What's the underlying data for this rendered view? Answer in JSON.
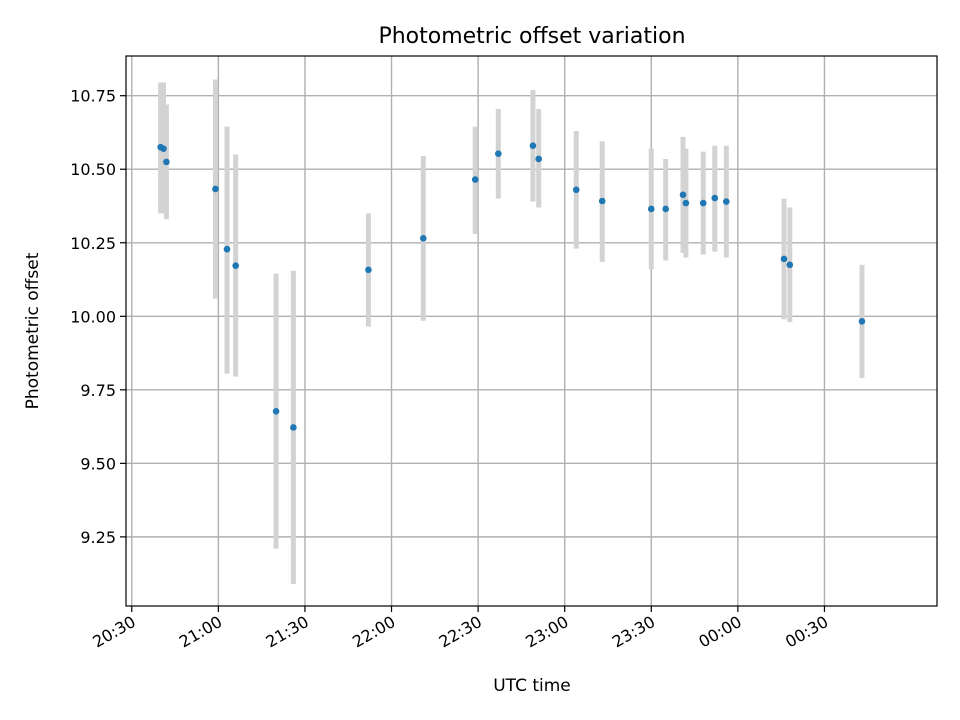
{
  "chart_data": {
    "type": "scatter",
    "title": "Photometric offset variation",
    "xlabel": "UTC time",
    "ylabel": "Photometric offset",
    "x_ticks": [
      "20:30",
      "21:00",
      "21:30",
      "22:00",
      "22:30",
      "23:00",
      "23:30",
      "00:00",
      "00:30"
    ],
    "y_ticks": [
      "9.25",
      "9.50",
      "9.75",
      "10.00",
      "10.25",
      "10.50",
      "10.75"
    ],
    "y_tick_values": [
      9.25,
      9.5,
      9.75,
      10.0,
      10.25,
      10.5,
      10.75
    ],
    "xlim": [
      "20:28",
      "01:09"
    ],
    "ylim": [
      9.015,
      10.885
    ],
    "grid": true,
    "colors": {
      "marker": "#1f77b4",
      "errorbar": "#d3d3d3",
      "grid": "#b0b0b0"
    },
    "series": [
      {
        "points": [
          {
            "x": "20:40",
            "y": 10.575,
            "err_low": 10.35,
            "err_high": 10.795
          },
          {
            "x": "20:41",
            "y": 10.57,
            "err_low": 10.35,
            "err_high": 10.795
          },
          {
            "x": "20:42",
            "y": 10.525,
            "err_low": 10.33,
            "err_high": 10.72
          },
          {
            "x": "20:59",
            "y": 10.433,
            "err_low": 10.06,
            "err_high": 10.805
          },
          {
            "x": "21:03",
            "y": 10.228,
            "err_low": 9.805,
            "err_high": 10.645
          },
          {
            "x": "21:06",
            "y": 10.172,
            "err_low": 9.795,
            "err_high": 10.55
          },
          {
            "x": "21:20",
            "y": 9.677,
            "err_low": 9.21,
            "err_high": 10.145
          },
          {
            "x": "21:26",
            "y": 9.622,
            "err_low": 9.09,
            "err_high": 10.155
          },
          {
            "x": "21:52",
            "y": 10.158,
            "err_low": 9.965,
            "err_high": 10.35
          },
          {
            "x": "22:11",
            "y": 10.265,
            "err_low": 9.985,
            "err_high": 10.545
          },
          {
            "x": "22:29",
            "y": 10.465,
            "err_low": 10.28,
            "err_high": 10.645
          },
          {
            "x": "22:37",
            "y": 10.553,
            "err_low": 10.4,
            "err_high": 10.705
          },
          {
            "x": "22:49",
            "y": 10.58,
            "err_low": 10.39,
            "err_high": 10.77
          },
          {
            "x": "22:51",
            "y": 10.535,
            "err_low": 10.37,
            "err_high": 10.705
          },
          {
            "x": "23:04",
            "y": 10.43,
            "err_low": 10.23,
            "err_high": 10.63
          },
          {
            "x": "23:13",
            "y": 10.392,
            "err_low": 10.185,
            "err_high": 10.595
          },
          {
            "x": "23:30",
            "y": 10.365,
            "err_low": 10.16,
            "err_high": 10.57
          },
          {
            "x": "23:35",
            "y": 10.365,
            "err_low": 10.19,
            "err_high": 10.535
          },
          {
            "x": "23:41",
            "y": 10.413,
            "err_low": 10.215,
            "err_high": 10.61
          },
          {
            "x": "23:42",
            "y": 10.385,
            "err_low": 10.2,
            "err_high": 10.57
          },
          {
            "x": "23:48",
            "y": 10.385,
            "err_low": 10.21,
            "err_high": 10.56
          },
          {
            "x": "23:52",
            "y": 10.402,
            "err_low": 10.22,
            "err_high": 10.58
          },
          {
            "x": "23:56",
            "y": 10.39,
            "err_low": 10.2,
            "err_high": 10.58
          },
          {
            "x": "00:16",
            "y": 10.195,
            "err_low": 9.99,
            "err_high": 10.4
          },
          {
            "x": "00:18",
            "y": 10.175,
            "err_low": 9.98,
            "err_high": 10.37
          },
          {
            "x": "00:43",
            "y": 9.983,
            "err_low": 9.79,
            "err_high": 10.175
          }
        ]
      }
    ]
  }
}
